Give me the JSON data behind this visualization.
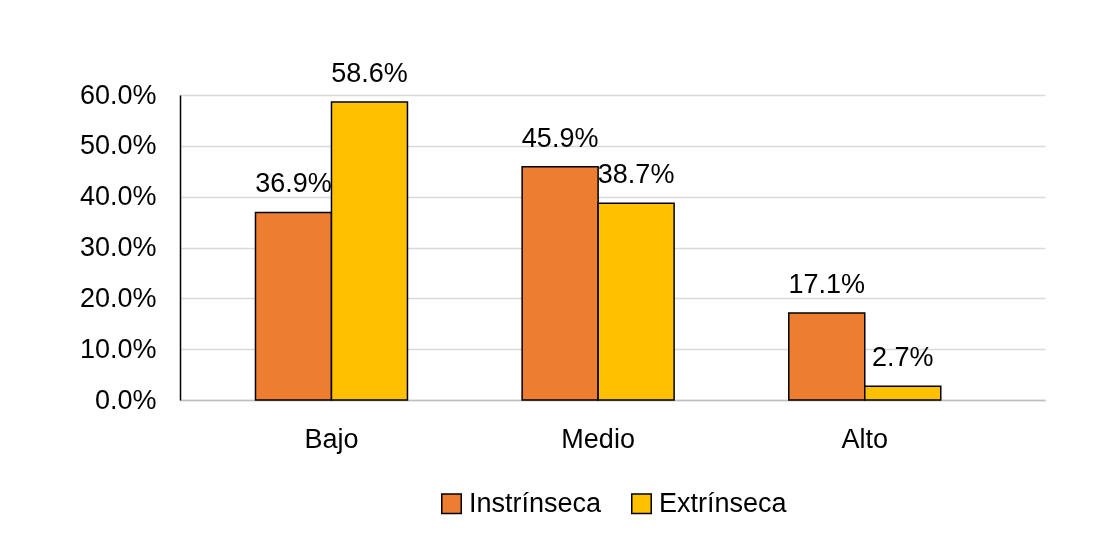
{
  "chart_data": {
    "type": "bar",
    "categories": [
      "Bajo",
      "Medio",
      "Alto"
    ],
    "series": [
      {
        "name": "Instrínseca",
        "color": "#ed7d31",
        "values": [
          36.9,
          45.9,
          17.1
        ],
        "value_labels": [
          "36.9%",
          "45.9%",
          "17.1%"
        ]
      },
      {
        "name": "Extrínseca",
        "color": "#ffc000",
        "values": [
          58.6,
          38.7,
          2.7
        ],
        "value_labels": [
          "58.6%",
          "38.7%",
          "2.7%"
        ]
      }
    ],
    "ylim": [
      0,
      60
    ],
    "yticks": [
      {
        "value": 0,
        "label": "0.0%"
      },
      {
        "value": 10,
        "label": "10.0%"
      },
      {
        "value": 20,
        "label": "20.0%"
      },
      {
        "value": 30,
        "label": "30.0%"
      },
      {
        "value": 40,
        "label": "40.0%"
      },
      {
        "value": 50,
        "label": "50.0%"
      },
      {
        "value": 60,
        "label": "60.0%"
      }
    ],
    "grid": "y",
    "legend": "bottom"
  }
}
